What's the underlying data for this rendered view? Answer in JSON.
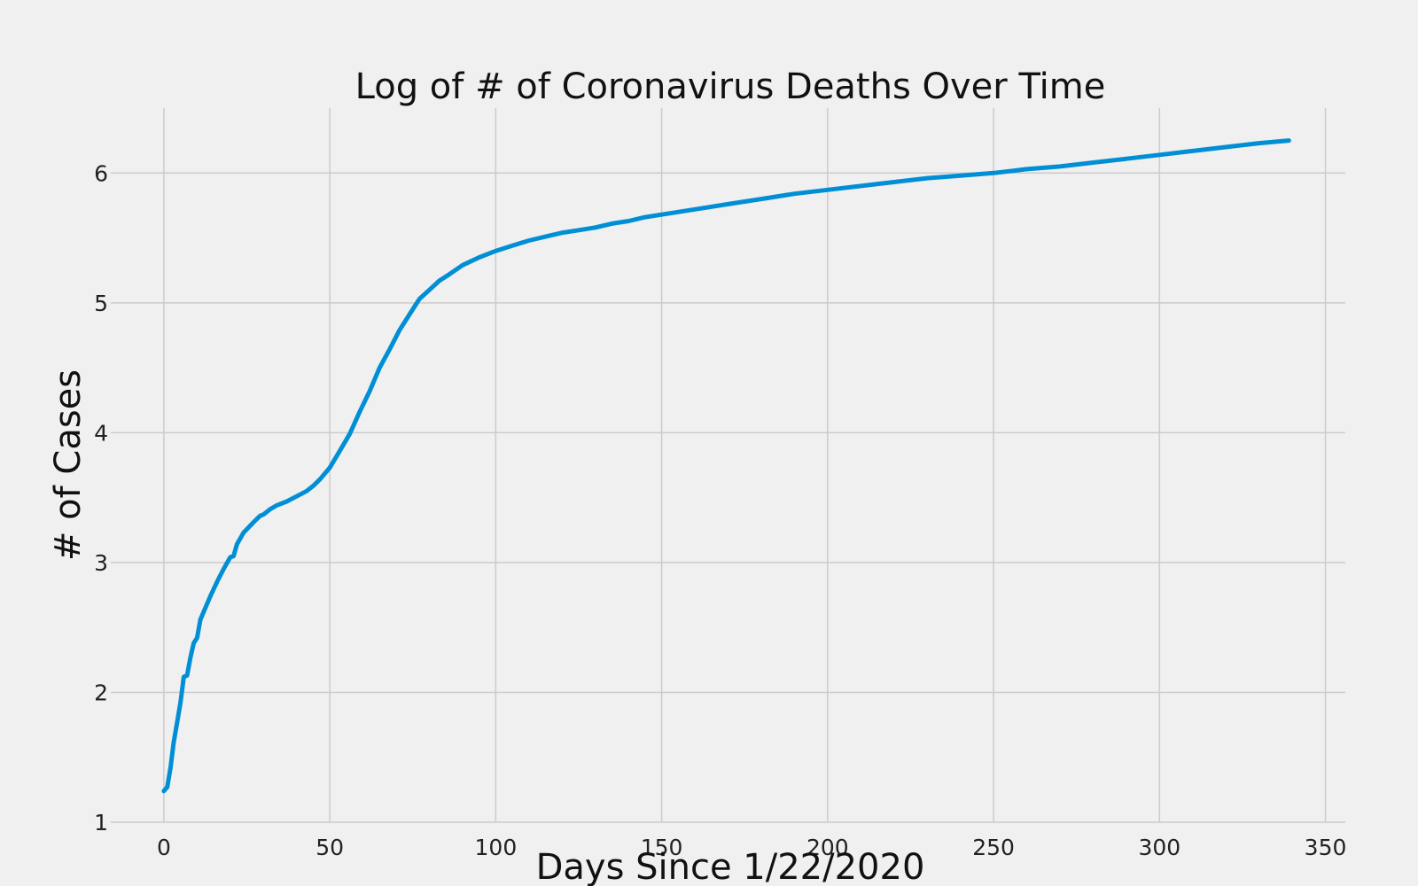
{
  "colors": {
    "background": "#f0f0f0",
    "grid": "#cbcbcb",
    "line": "#008fd5",
    "text": "#222222"
  },
  "chart_data": {
    "type": "line",
    "title": "Log of # of Coronavirus Deaths Over Time",
    "xlabel": "Days Since 1/22/2020",
    "ylabel": "# of Cases",
    "xlim": [
      -16,
      356
    ],
    "ylim": [
      1,
      6.5
    ],
    "xticks": [
      0,
      50,
      100,
      150,
      200,
      250,
      300,
      350
    ],
    "yticks": [
      1,
      2,
      3,
      4,
      5,
      6
    ],
    "grid": true,
    "legend": "none",
    "series": [
      {
        "x": [
          0,
          1,
          2,
          3,
          4,
          5,
          6,
          7,
          8,
          9,
          10,
          11,
          12,
          14,
          16,
          18,
          20,
          21,
          22,
          24,
          27,
          29,
          30,
          31,
          32,
          34,
          37,
          40,
          43,
          45,
          47,
          50,
          53,
          56,
          59,
          62,
          65,
          68,
          71,
          74,
          77,
          80,
          83,
          86,
          90,
          95,
          100,
          105,
          110,
          115,
          120,
          125,
          130,
          135,
          140,
          145,
          150,
          160,
          170,
          180,
          190,
          200,
          210,
          220,
          230,
          240,
          250,
          260,
          270,
          280,
          290,
          300,
          310,
          320,
          330,
          339
        ],
        "values": [
          1.24,
          1.27,
          1.42,
          1.62,
          1.77,
          1.92,
          2.12,
          2.13,
          2.27,
          2.38,
          2.42,
          2.56,
          2.62,
          2.74,
          2.85,
          2.95,
          3.04,
          3.05,
          3.14,
          3.23,
          3.31,
          3.36,
          3.37,
          3.39,
          3.41,
          3.44,
          3.47,
          3.51,
          3.55,
          3.59,
          3.64,
          3.73,
          3.86,
          3.99,
          4.16,
          4.32,
          4.5,
          4.64,
          4.79,
          4.91,
          5.03,
          5.1,
          5.17,
          5.22,
          5.29,
          5.35,
          5.4,
          5.44,
          5.48,
          5.51,
          5.54,
          5.56,
          5.58,
          5.61,
          5.63,
          5.66,
          5.68,
          5.72,
          5.76,
          5.8,
          5.84,
          5.87,
          5.9,
          5.93,
          5.96,
          5.98,
          6.0,
          6.03,
          6.05,
          6.08,
          6.11,
          6.14,
          6.17,
          6.2,
          6.23,
          6.25
        ]
      }
    ]
  }
}
